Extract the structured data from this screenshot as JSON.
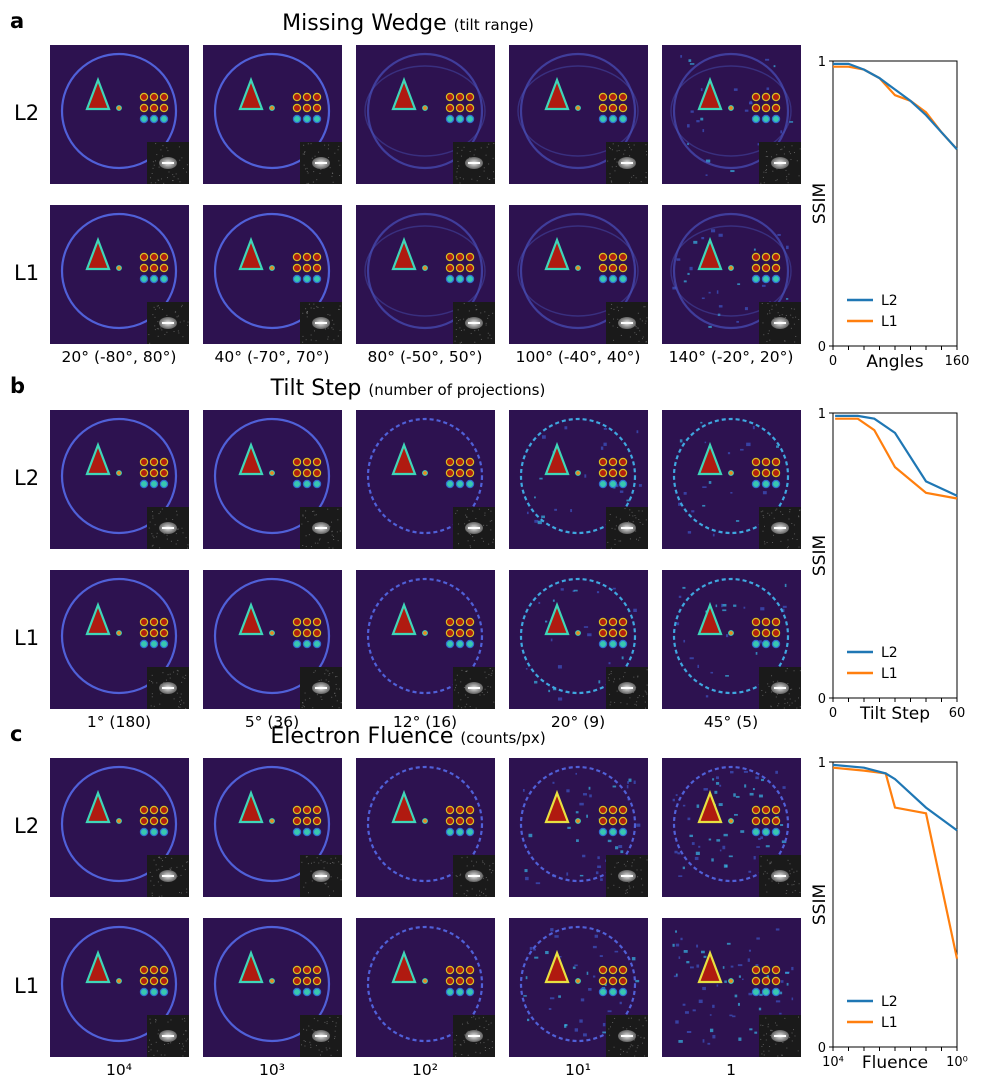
{
  "panels": [
    {
      "letter": "a",
      "title": "Missing Wedge",
      "subtitle": "(tilt range)",
      "rows": [
        "L2",
        "L1"
      ],
      "columns": [
        "20° (-80°, 80°)",
        "40° (-70°, 70°)",
        "80° (-50°, 50°)",
        "100° (-40°, 40°)",
        "140° (-20°, 20°)"
      ]
    },
    {
      "letter": "b",
      "title": "Tilt Step",
      "subtitle": "(number of projections)",
      "rows": [
        "L2",
        "L1"
      ],
      "columns": [
        "1° (180)",
        "5° (36)",
        "12° (16)",
        "20° (9)",
        "45° (5)"
      ]
    },
    {
      "letter": "c",
      "title": "Electron Fluence",
      "subtitle": "(counts/px)",
      "rows": [
        "L2",
        "L1"
      ],
      "columns": [
        "10⁴",
        "10³",
        "10²",
        "10¹",
        "1"
      ]
    }
  ],
  "chart_data": [
    {
      "type": "line",
      "xlabel": "Angles",
      "ylabel": "SSIM",
      "xlim": [
        0,
        160
      ],
      "ylim": [
        0,
        1
      ],
      "xtick_labels": [
        "0",
        "160"
      ],
      "ytick_labels": [
        "0",
        "1"
      ],
      "legend": "lower-left",
      "x": [
        0,
        20,
        40,
        60,
        80,
        100,
        120,
        140,
        160
      ],
      "series": [
        {
          "name": "L2",
          "color": "#1f77b4",
          "values": [
            0.99,
            0.99,
            0.97,
            0.94,
            0.9,
            0.86,
            0.81,
            0.75,
            0.69
          ]
        },
        {
          "name": "L1",
          "color": "#ff7f0e",
          "values": [
            0.98,
            0.98,
            0.97,
            0.94,
            0.88,
            0.86,
            0.82,
            0.75,
            0.69
          ]
        }
      ]
    },
    {
      "type": "line",
      "xlabel": "Tilt Step",
      "ylabel": "SSIM",
      "xlim": [
        0,
        60
      ],
      "ylim": [
        0,
        1
      ],
      "xtick_labels": [
        "0",
        "60"
      ],
      "ytick_labels": [
        "0",
        "1"
      ],
      "legend": "lower-left",
      "x": [
        1,
        5,
        12,
        20,
        30,
        45,
        60
      ],
      "series": [
        {
          "name": "L2",
          "color": "#1f77b4",
          "values": [
            0.99,
            0.99,
            0.99,
            0.98,
            0.93,
            0.76,
            0.71
          ]
        },
        {
          "name": "L1",
          "color": "#ff7f0e",
          "values": [
            0.98,
            0.98,
            0.98,
            0.94,
            0.81,
            0.72,
            0.7
          ]
        }
      ]
    },
    {
      "type": "line",
      "xlabel": "Fluence",
      "ylabel": "SSIM",
      "xscale": "log",
      "xlim": [
        10000,
        1
      ],
      "ylim": [
        0,
        1
      ],
      "xtick_labels": [
        "10⁴",
        "10⁰"
      ],
      "ytick_labels": [
        "0",
        "1"
      ],
      "legend": "lower-left",
      "x": [
        10000,
        1000,
        200,
        100,
        10,
        1
      ],
      "series": [
        {
          "name": "L2",
          "color": "#1f77b4",
          "values": [
            0.99,
            0.98,
            0.96,
            0.94,
            0.84,
            0.76
          ]
        },
        {
          "name": "L1",
          "color": "#ff7f0e",
          "values": [
            0.98,
            0.97,
            0.96,
            0.84,
            0.82,
            0.31
          ]
        }
      ]
    }
  ]
}
